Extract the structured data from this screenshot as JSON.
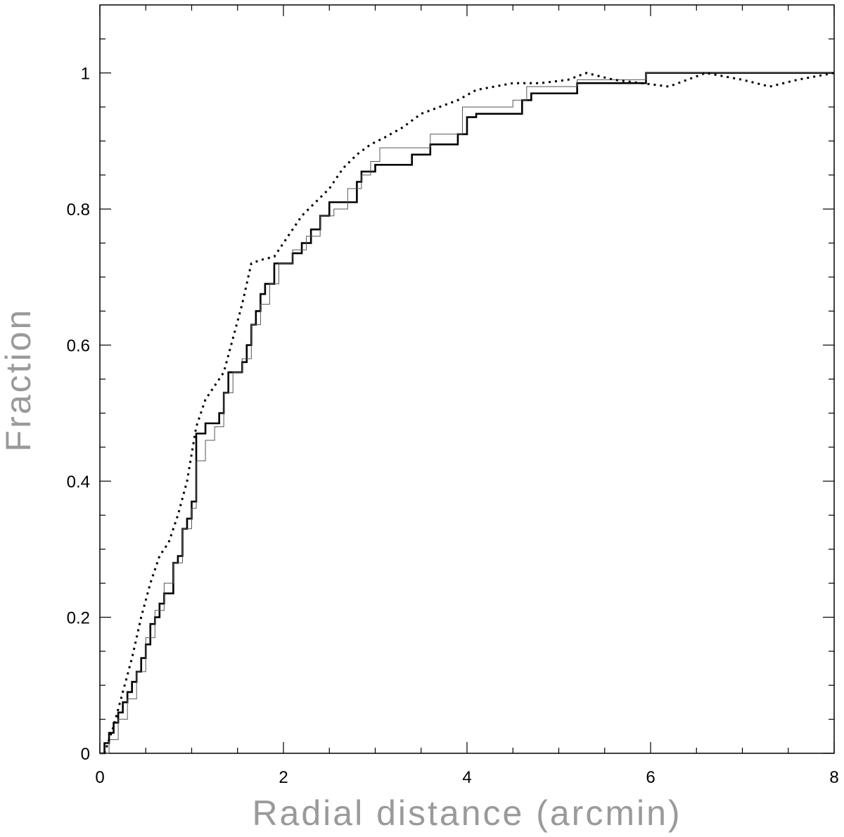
{
  "chart_data": {
    "type": "line",
    "xlabel": "Radial distance (arcmin)",
    "ylabel": "Fraction",
    "xlim": [
      0,
      8
    ],
    "ylim": [
      0,
      1.1
    ],
    "xticks": [
      0,
      2,
      4,
      6,
      8
    ],
    "yticks": [
      0,
      0.2,
      0.4,
      0.6,
      0.8,
      1
    ],
    "xminorticks": [
      0.5,
      1,
      1.5,
      2.5,
      3,
      3.5,
      4.5,
      5,
      5.5,
      6.5,
      7,
      7.5
    ],
    "yminorticks": [
      0.05,
      0.1,
      0.15,
      0.25,
      0.3,
      0.35,
      0.45,
      0.5,
      0.55,
      0.65,
      0.7,
      0.75,
      0.85,
      0.9,
      0.95,
      1.05
    ],
    "series": [
      {
        "color": "#000000",
        "line_width": 2.6,
        "step": true,
        "dashed": false,
        "x": [
          0,
          0.05,
          0.1,
          0.15,
          0.2,
          0.25,
          0.3,
          0.35,
          0.4,
          0.45,
          0.5,
          0.55,
          0.6,
          0.65,
          0.7,
          0.8,
          0.85,
          0.9,
          0.95,
          1.0,
          1.05,
          1.15,
          1.2,
          1.3,
          1.35,
          1.4,
          1.55,
          1.6,
          1.65,
          1.7,
          1.75,
          1.8,
          1.9,
          2.0,
          2.1,
          2.2,
          2.3,
          2.4,
          2.5,
          2.6,
          2.8,
          2.85,
          2.9,
          3.0,
          3.4,
          3.6,
          3.9,
          4.0,
          4.1,
          4.2,
          4.6,
          4.7,
          5.2,
          5.95,
          8.0
        ],
        "values": [
          0,
          0.015,
          0.03,
          0.045,
          0.06,
          0.075,
          0.09,
          0.105,
          0.12,
          0.14,
          0.16,
          0.19,
          0.2,
          0.22,
          0.235,
          0.28,
          0.29,
          0.33,
          0.345,
          0.37,
          0.47,
          0.485,
          0.485,
          0.5,
          0.53,
          0.56,
          0.575,
          0.6,
          0.63,
          0.65,
          0.675,
          0.69,
          0.72,
          0.72,
          0.735,
          0.75,
          0.77,
          0.79,
          0.81,
          0.81,
          0.84,
          0.855,
          0.855,
          0.865,
          0.88,
          0.895,
          0.91,
          0.935,
          0.94,
          0.94,
          0.96,
          0.97,
          0.985,
          1.0,
          1.0
        ]
      },
      {
        "color": "#555555",
        "line_width": 1,
        "step": true,
        "dashed": false,
        "x": [
          0,
          0.1,
          0.2,
          0.3,
          0.4,
          0.5,
          0.6,
          0.7,
          0.8,
          0.9,
          1.0,
          1.05,
          1.15,
          1.25,
          1.35,
          1.45,
          1.55,
          1.65,
          1.75,
          1.85,
          1.95,
          2.1,
          2.25,
          2.4,
          2.55,
          2.7,
          2.85,
          2.95,
          3.05,
          3.6,
          3.95,
          4.5,
          4.65,
          5.2,
          5.95,
          8.0
        ],
        "values": [
          0,
          0.02,
          0.05,
          0.08,
          0.12,
          0.17,
          0.21,
          0.25,
          0.28,
          0.33,
          0.36,
          0.43,
          0.46,
          0.48,
          0.53,
          0.56,
          0.58,
          0.63,
          0.66,
          0.69,
          0.72,
          0.74,
          0.76,
          0.79,
          0.8,
          0.83,
          0.85,
          0.87,
          0.89,
          0.91,
          0.95,
          0.96,
          0.98,
          0.99,
          1.0,
          1.0
        ]
      },
      {
        "color": "#000000",
        "line_width": 3,
        "step": false,
        "dashed": true,
        "x": [
          0.05,
          0.15,
          0.25,
          0.35,
          0.45,
          0.55,
          0.65,
          0.75,
          0.85,
          0.95,
          1.05,
          1.15,
          1.25,
          1.35,
          1.45,
          1.55,
          1.65,
          1.75,
          1.9,
          2.05,
          2.2,
          2.35,
          2.5,
          2.65,
          2.8,
          2.95,
          3.1,
          3.3,
          3.5,
          3.7,
          3.9,
          4.1,
          4.3,
          4.5,
          4.8,
          5.1,
          5.3,
          5.6,
          5.9,
          6.2,
          6.6,
          7.0,
          7.3,
          7.6,
          8.0
        ],
        "values": [
          0,
          0.04,
          0.09,
          0.14,
          0.2,
          0.25,
          0.29,
          0.31,
          0.35,
          0.4,
          0.48,
          0.52,
          0.54,
          0.56,
          0.61,
          0.66,
          0.72,
          0.725,
          0.73,
          0.76,
          0.79,
          0.81,
          0.83,
          0.86,
          0.88,
          0.895,
          0.905,
          0.92,
          0.94,
          0.95,
          0.96,
          0.975,
          0.98,
          0.985,
          0.985,
          0.99,
          1.0,
          0.99,
          0.985,
          0.98,
          1.0,
          0.99,
          0.98,
          0.99,
          1.0
        ]
      }
    ]
  }
}
